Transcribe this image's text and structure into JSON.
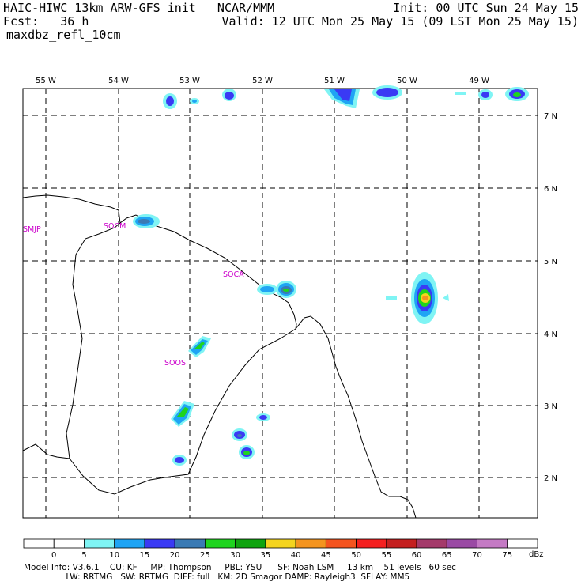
{
  "header": {
    "left_line1": "HAIC-HIWC 13km ARW-GFS init   NCAR/MMM",
    "left_line2": "Fcst:   36 h",
    "left_line3": "maxdbz_refl_10cm",
    "right_line1": "Init: 00 UTC Sun 24 May 15",
    "right_line2": "Valid: 12 UTC Mon 25 May 15 (09 LST Mon 25 May 15)"
  },
  "map": {
    "lon_labels": [
      "55 W",
      "54 W",
      "53 W",
      "52 W",
      "51 W",
      "50 W",
      "49 W"
    ],
    "lat_labels": [
      "7 N",
      "6 N",
      "5 N",
      "4 N",
      "3 N",
      "2 N"
    ],
    "stations": [
      "SMJP",
      "SOCM",
      "SOCA",
      "SOOS"
    ]
  },
  "colorbar": {
    "ticks": [
      "0",
      "5",
      "10",
      "15",
      "20",
      "25",
      "30",
      "35",
      "40",
      "45",
      "50",
      "55",
      "60",
      "65",
      "70",
      "75"
    ],
    "unit": "dBz",
    "colors": [
      "#ffffff",
      "#ffffff",
      "#7ff4f4",
      "#1fa4f4",
      "#3a3af4",
      "#3a7ab4",
      "#1fd41f",
      "#0fa40f",
      "#f4d41f",
      "#f4941f",
      "#f4541f",
      "#f41f1f",
      "#c41f1f",
      "#a43a6a",
      "#9a4aa4",
      "#c47ac4",
      "#ffffff"
    ]
  },
  "footer": {
    "line1": "Model Info: V3.6.1    CU: KF     MP: Thompson     PBL: YSU      SF: Noah LSM     13 km    51 levels   60 sec",
    "line2": "                LW: RRTMG   SW: RRTMG  DIFF: full   KM: 2D Smagor DAMP: Rayleigh3  SFLAY: MM5"
  }
}
